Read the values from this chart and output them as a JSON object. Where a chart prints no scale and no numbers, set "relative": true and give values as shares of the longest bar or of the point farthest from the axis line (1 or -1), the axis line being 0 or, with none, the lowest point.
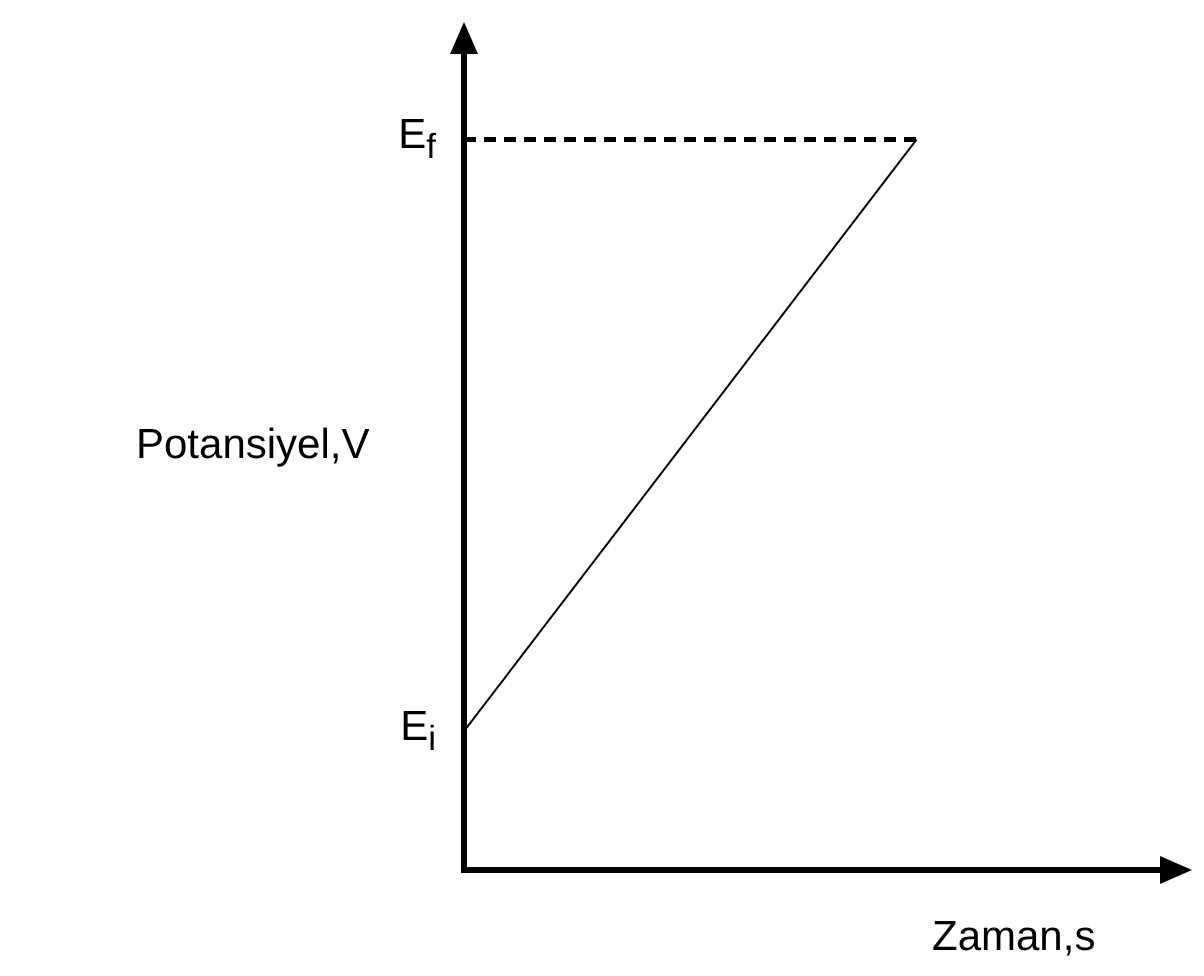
{
  "chart_data": {
    "type": "line",
    "relative": true,
    "ylabel": "Potansiyel,V",
    "xlabel": "Zaman,s",
    "categories": [
      null,
      null
    ],
    "series": [
      {
        "color": "#000000",
        "values": [
          0.19,
          1
        ]
      }
    ],
    "ref_lines": [
      {
        "axis": "y",
        "value": 1,
        "label": "E$_{f}$",
        "color": "#000000",
        "line_style": "dashed"
      }
    ],
    "annotations": [
      "E$_{i}$"
    ]
  }
}
